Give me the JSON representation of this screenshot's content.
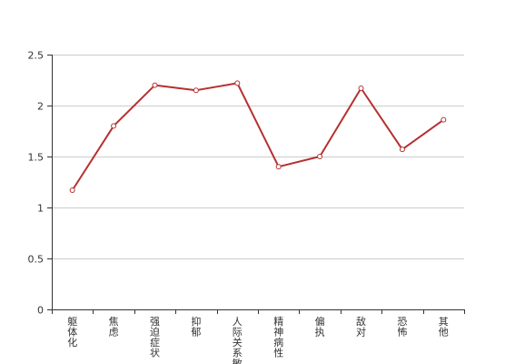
{
  "chart_data": {
    "type": "line",
    "categories": [
      "躯体化",
      "焦虑",
      "强迫症状",
      "抑郁",
      "人际关系敏感",
      "精神病性",
      "偏执",
      "敌对",
      "恐怖",
      "其他"
    ],
    "series": [
      {
        "values": [
          1.17,
          1.8,
          2.2,
          2.15,
          2.22,
          1.4,
          1.5,
          2.17,
          1.57,
          1.86
        ]
      }
    ],
    "ylim": [
      0,
      2.5
    ],
    "yticks": [
      0,
      0.5,
      1,
      1.5,
      2,
      2.5
    ],
    "ytick_labels": [
      "0",
      "0.5",
      "1",
      "1.5",
      "2",
      "2.5"
    ],
    "grid": true,
    "colors": {
      "line": "#b5302f",
      "marker_fill": "#ffffff",
      "grid": "#cccccc",
      "axis": "#333333"
    }
  }
}
